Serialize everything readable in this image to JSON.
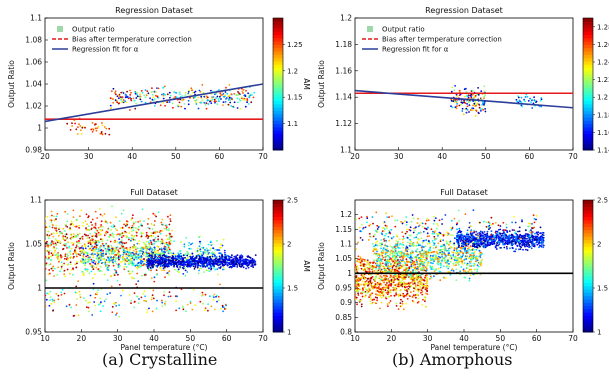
{
  "chart_data": [
    {
      "type": "scatter",
      "title": "Regression Dataset",
      "xlabel": "",
      "ylabel": "Output Ratio",
      "xlim": [
        20,
        70
      ],
      "ylim": [
        0.98,
        1.1
      ],
      "xticks": [
        "20",
        "30",
        "40",
        "50",
        "60",
        "70"
      ],
      "yticks": [
        "0.98",
        "1",
        "1.02",
        "1.04",
        "1.06",
        "1.08",
        "1.1"
      ],
      "legend": [
        "Output ratio",
        "Bias after termperature correction",
        "Regression fit for α"
      ],
      "legend_position": "top-left",
      "colorbar": {
        "label": "AM",
        "range": [
          1.05,
          1.3
        ],
        "ticks": [
          "1.1",
          "1.15",
          "1.2",
          "1.25"
        ]
      },
      "lines": [
        {
          "name": "Bias after termperature correction",
          "color": "#e41a1c",
          "x": [
            20,
            70
          ],
          "y": [
            1.008,
            1.008
          ]
        },
        {
          "name": "Regression fit for α",
          "color": "#2c3e9a",
          "x": [
            20,
            70
          ],
          "y": [
            1.006,
            1.04
          ]
        }
      ],
      "clusters": [
        {
          "x_range": [
            25,
            35
          ],
          "y_center": 1.0,
          "y_spread": 0.006,
          "am": [
            1.2,
            1.3
          ],
          "count": 40
        },
        {
          "x_range": [
            35,
            68
          ],
          "y_center": 1.028,
          "y_spread": 0.008,
          "am": [
            1.05,
            1.3
          ],
          "count": 330
        }
      ]
    },
    {
      "type": "scatter",
      "title": "Regression Dataset",
      "xlabel": "",
      "ylabel": "Output Ratio",
      "xlim": [
        20,
        70
      ],
      "ylim": [
        1.1,
        1.2
      ],
      "xticks": [
        "20",
        "30",
        "40",
        "50",
        "60",
        "70"
      ],
      "yticks": [
        "1.1",
        "1.12",
        "1.14",
        "1.16",
        "1.18",
        "1.2"
      ],
      "legend": [
        "Output ratio",
        "Bias after termperature correction",
        "Regression fit for α"
      ],
      "legend_position": "top-left",
      "colorbar": {
        "label": "AM",
        "range": [
          1.14,
          1.29
        ],
        "ticks": [
          "1.14",
          "1.16",
          "1.18",
          "1.2",
          "1.22",
          "1.24",
          "1.26",
          "1.28"
        ]
      },
      "lines": [
        {
          "name": "Bias after termperature correction",
          "color": "#e41a1c",
          "x": [
            20,
            70
          ],
          "y": [
            1.143,
            1.143
          ]
        },
        {
          "name": "Regression fit for α",
          "color": "#2c3e9a",
          "x": [
            20,
            70
          ],
          "y": [
            1.145,
            1.132
          ]
        }
      ],
      "clusters": [
        {
          "x_range": [
            42,
            50
          ],
          "y_center": 1.137,
          "y_spread": 0.009,
          "am": [
            1.14,
            1.29
          ],
          "count": 160
        },
        {
          "x_range": [
            57,
            63
          ],
          "y_center": 1.137,
          "y_spread": 0.004,
          "am": [
            1.14,
            1.2
          ],
          "count": 40
        }
      ]
    },
    {
      "type": "scatter",
      "title": "Full Dataset",
      "xlabel": "Panel temperature (°C)",
      "ylabel": "Output Ratio",
      "xlim": [
        10,
        70
      ],
      "ylim": [
        0.95,
        1.1
      ],
      "xticks": [
        "10",
        "20",
        "30",
        "40",
        "50",
        "60",
        "70"
      ],
      "yticks": [
        "0.95",
        "1",
        "1.05",
        "1.1"
      ],
      "colorbar": {
        "label": "AM",
        "range": [
          1,
          2.5
        ],
        "ticks": [
          "1",
          "1.5",
          "2",
          "2.5"
        ]
      },
      "lines": [
        {
          "name": "reference",
          "color": "#000000",
          "x": [
            10,
            70
          ],
          "y": [
            1.0,
            1.0
          ]
        }
      ],
      "clusters": [
        {
          "x_range": [
            10,
            45
          ],
          "y_center": 1.05,
          "y_spread": 0.03,
          "am": [
            1.6,
            2.5
          ],
          "count": 900
        },
        {
          "x_range": [
            20,
            60
          ],
          "y_center": 1.035,
          "y_spread": 0.015,
          "am": [
            1.2,
            2.0
          ],
          "count": 700
        },
        {
          "x_range": [
            38,
            68
          ],
          "y_center": 1.03,
          "y_spread": 0.006,
          "am": [
            1.0,
            1.3
          ],
          "count": 800
        },
        {
          "x_range": [
            10,
            60
          ],
          "y_center": 0.985,
          "y_spread": 0.015,
          "am": [
            1.2,
            2.5
          ],
          "count": 180
        }
      ]
    },
    {
      "type": "scatter",
      "title": "Full Dataset",
      "xlabel": "Panel temperature (°C)",
      "ylabel": "Output Ratio",
      "xlim": [
        10,
        70
      ],
      "ylim": [
        0.8,
        1.25
      ],
      "xticks": [
        "10",
        "20",
        "30",
        "40",
        "50",
        "60",
        "70"
      ],
      "yticks": [
        "0.8",
        "0.85",
        "0.9",
        "0.95",
        "1",
        "1.05",
        "1.1",
        "1.15",
        "1.2"
      ],
      "colorbar": {
        "label": "AM",
        "range": [
          1,
          2.5
        ],
        "ticks": [
          "1",
          "1.5",
          "2",
          "2.5"
        ]
      },
      "lines": [
        {
          "name": "reference",
          "color": "#000000",
          "x": [
            10,
            70
          ],
          "y": [
            1.0,
            1.0
          ]
        }
      ],
      "clusters": [
        {
          "x_range": [
            10,
            30
          ],
          "y_center": 0.98,
          "y_spread": 0.07,
          "am": [
            1.8,
            2.5
          ],
          "count": 900
        },
        {
          "x_range": [
            15,
            45
          ],
          "y_center": 1.06,
          "y_spread": 0.06,
          "am": [
            1.3,
            2.2
          ],
          "count": 900
        },
        {
          "x_range": [
            38,
            62
          ],
          "y_center": 1.115,
          "y_spread": 0.025,
          "am": [
            1.0,
            1.4
          ],
          "count": 800
        },
        {
          "x_range": [
            10,
            60
          ],
          "y_center": 1.15,
          "y_spread": 0.05,
          "am": [
            1.0,
            2.5
          ],
          "count": 250
        }
      ]
    }
  ],
  "captions": [
    "(a) Crystalline",
    "(b) Amorphous"
  ]
}
